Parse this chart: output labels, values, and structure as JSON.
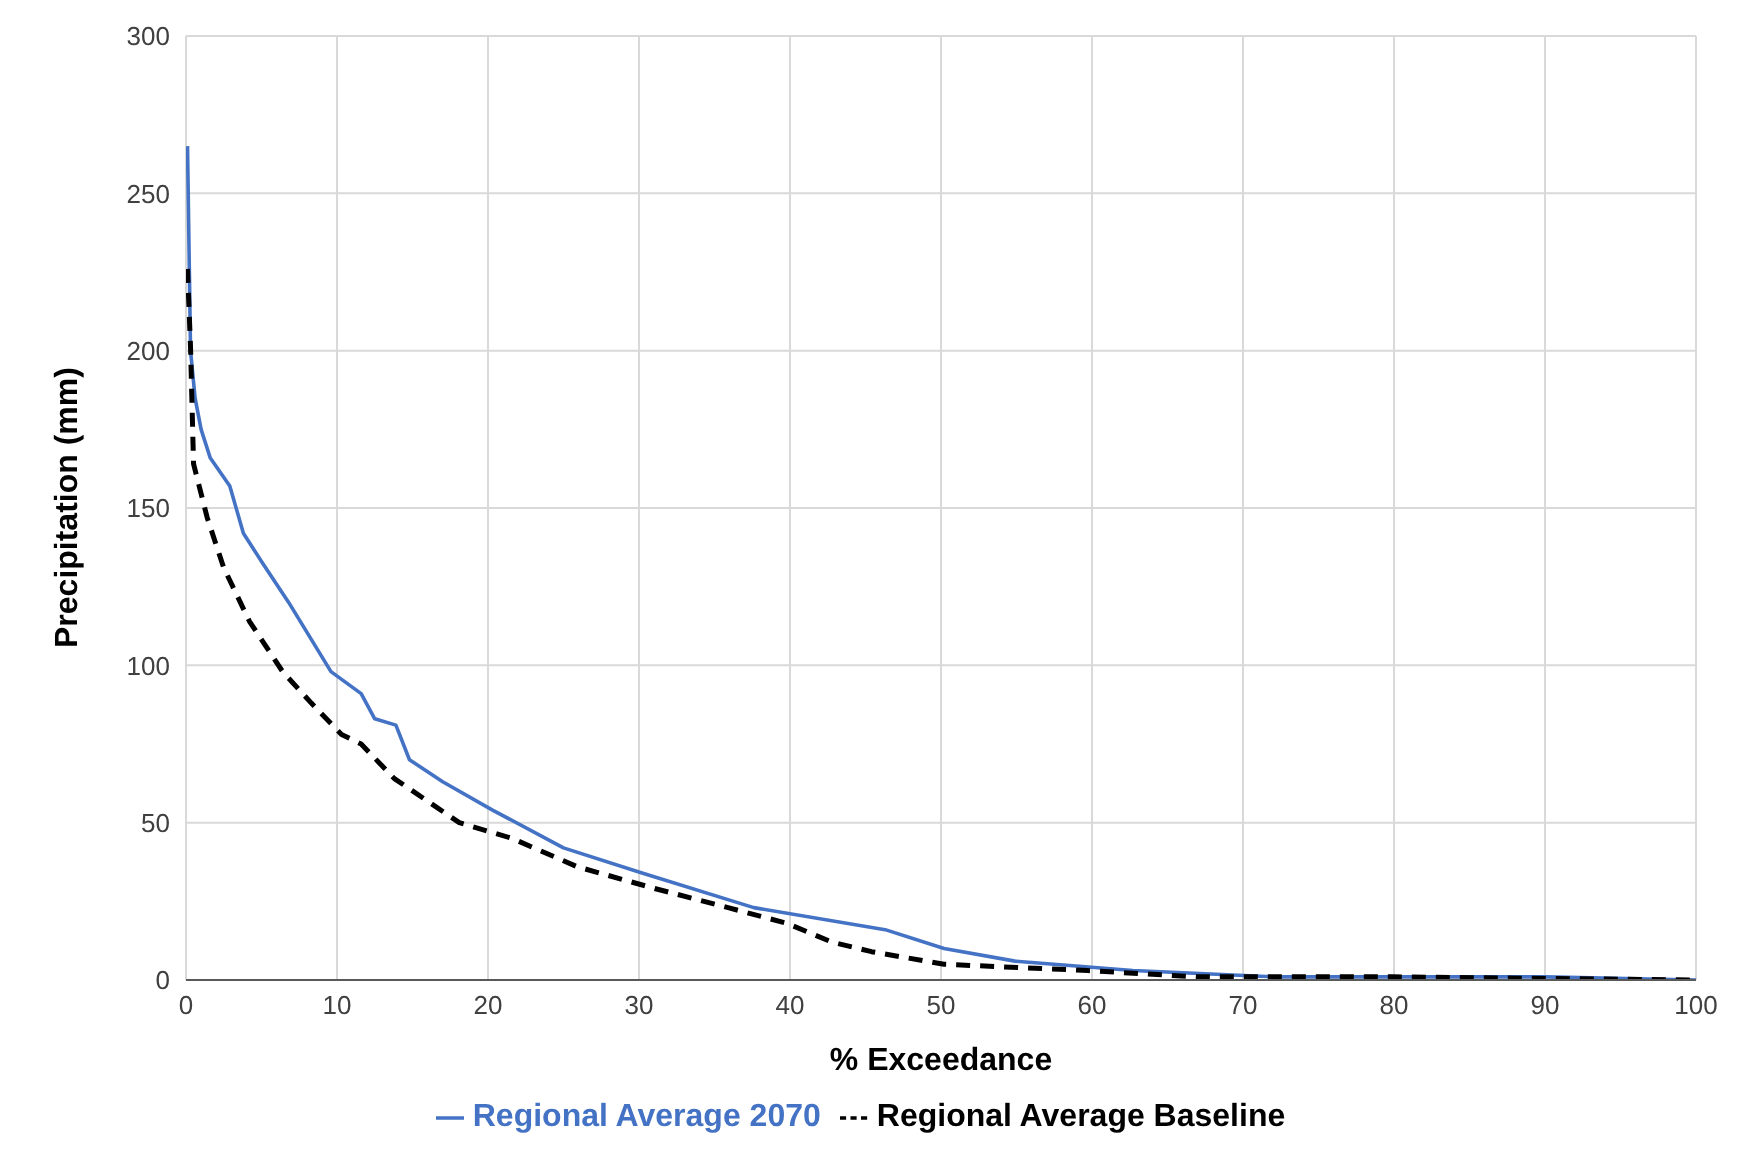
{
  "chart_data": {
    "type": "line",
    "xlabel": "% Exceedance",
    "ylabel": "Precipitation (mm)",
    "xlim": [
      0,
      100
    ],
    "xticks": [
      0,
      10,
      20,
      30,
      40,
      50,
      60,
      70,
      80,
      90,
      100
    ],
    "ylim": [
      0,
      300
    ],
    "yticks": [
      0,
      50,
      100,
      150,
      200,
      250,
      300
    ],
    "grid": true,
    "legend": "bottom",
    "marker": "none",
    "series": [
      {
        "name": "Regional Average 2070",
        "color": "#4472c4",
        "line_style": "solid",
        "x": [
          0.1,
          0.3,
          0.6,
          1,
          1.6,
          2.9,
          3.8,
          5,
          6.8,
          9.6,
          11.6,
          12.5,
          13.9,
          14.8,
          17,
          20.3,
          25,
          30.2,
          37.6,
          46.3,
          50.2,
          54.9,
          62.7,
          72,
          90,
          100
        ],
        "values": [
          265,
          200,
          185,
          175,
          166,
          157,
          142,
          133,
          120,
          98,
          91,
          83,
          81,
          70,
          63,
          54,
          42,
          34,
          23,
          16,
          10,
          6,
          3,
          1,
          1,
          0
        ]
      },
      {
        "name": "Regional Average Baseline",
        "color": "#000000",
        "line_style": "dashed",
        "x": [
          0.1,
          0.3,
          0.5,
          1.4,
          2.5,
          4.2,
          6.4,
          8.3,
          10.3,
          11.6,
          13.8,
          18.1,
          21.6,
          25.9,
          31.1,
          35.9,
          39.8,
          42.8,
          45.4,
          50.2,
          59.7,
          67,
          80,
          100
        ],
        "values": [
          226,
          201,
          164,
          147,
          131,
          114,
          98,
          88,
          78,
          75,
          64,
          50,
          45,
          36,
          29,
          23,
          18,
          12,
          9,
          5,
          3,
          1,
          1,
          0
        ]
      }
    ]
  }
}
